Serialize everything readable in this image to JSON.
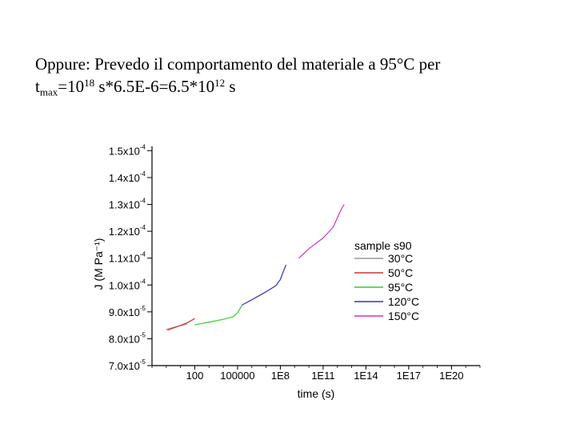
{
  "text": {
    "line1": "Oppure: Prevedo il comportamento del materiale a 95°C per",
    "t": "t",
    "max_sub": "max",
    "eq1": "=10",
    "exp1": "18",
    "eq2": " s*6.5E-6=6.5*10",
    "exp2": "12",
    "unit": " s"
  },
  "chart_data": {
    "type": "line",
    "xlabel": "time (s)",
    "ylabel": "J (M Pa⁻¹)",
    "x_scale": "log",
    "xlim": [
      0.1,
      1e+22
    ],
    "ylim": [
      7e-05,
      0.000151
    ],
    "x_ticks": [
      100,
      100000,
      100000000.0,
      100000000000.0,
      100000000000000.0,
      1e+17,
      1e+20
    ],
    "x_tick_labels": [
      "100",
      "100000",
      "1E8",
      "1E11",
      "1E14",
      "1E17",
      "1E20"
    ],
    "y_ticks": [
      7e-05,
      8e-05,
      9e-05,
      0.0001,
      0.00011,
      0.00012,
      0.00013,
      0.00014,
      0.00015
    ],
    "y_tick_labels": [
      {
        "mantissa": "7.0x10",
        "exp": "-5"
      },
      {
        "mantissa": "8.0x10",
        "exp": "-5"
      },
      {
        "mantissa": "9.0x10",
        "exp": "-5"
      },
      {
        "mantissa": "1.0x10",
        "exp": "-4"
      },
      {
        "mantissa": "1.1x10",
        "exp": "-4"
      },
      {
        "mantissa": "1.2x10",
        "exp": "-4"
      },
      {
        "mantissa": "1.3x10",
        "exp": "-4"
      },
      {
        "mantissa": "1.4x10",
        "exp": "-4"
      },
      {
        "mantissa": "1.5x10",
        "exp": "-4"
      }
    ],
    "legend_title": "sample s90",
    "legend_position": "right",
    "series": [
      {
        "name": "30°C",
        "color": "#9a9a9a",
        "points": [
          [
            1,
            8.35e-05
          ],
          [
            5,
            8.45e-05
          ],
          [
            30,
            8.55e-05
          ]
        ]
      },
      {
        "name": "50°C",
        "color": "#cc3333",
        "points": [
          [
            1.2,
            8.32e-05
          ],
          [
            6,
            8.45e-05
          ],
          [
            30,
            8.6e-05
          ],
          [
            100,
            8.75e-05
          ]
        ]
      },
      {
        "name": "95°C",
        "color": "#33cc33",
        "points": [
          [
            100,
            8.52e-05
          ],
          [
            1000,
            8.62e-05
          ],
          [
            10000,
            8.72e-05
          ],
          [
            50000,
            8.82e-05
          ],
          [
            100000,
            8.97e-05
          ],
          [
            150000,
            9.12e-05
          ],
          [
            200000,
            9.25e-05
          ]
        ]
      },
      {
        "name": "120°C",
        "color": "#3333bb",
        "points": [
          [
            200000,
            9.25e-05
          ],
          [
            1000000,
            9.45e-05
          ],
          [
            10000000,
            9.75e-05
          ],
          [
            50000000,
            9.98e-05
          ],
          [
            100000000,
            0.000102
          ],
          [
            160000000,
            0.000105
          ],
          [
            250000000,
            0.0001075
          ]
        ]
      },
      {
        "name": "150°C",
        "color": "#cc33cc",
        "points": [
          [
            2000000000,
            0.00011
          ],
          [
            10000000000,
            0.0001135
          ],
          [
            100000000000,
            0.0001175
          ],
          [
            500000000000,
            0.0001215
          ],
          [
            1000000000000,
            0.000125
          ],
          [
            2000000000000,
            0.0001285
          ],
          [
            3000000000000,
            0.00013
          ]
        ]
      }
    ]
  }
}
